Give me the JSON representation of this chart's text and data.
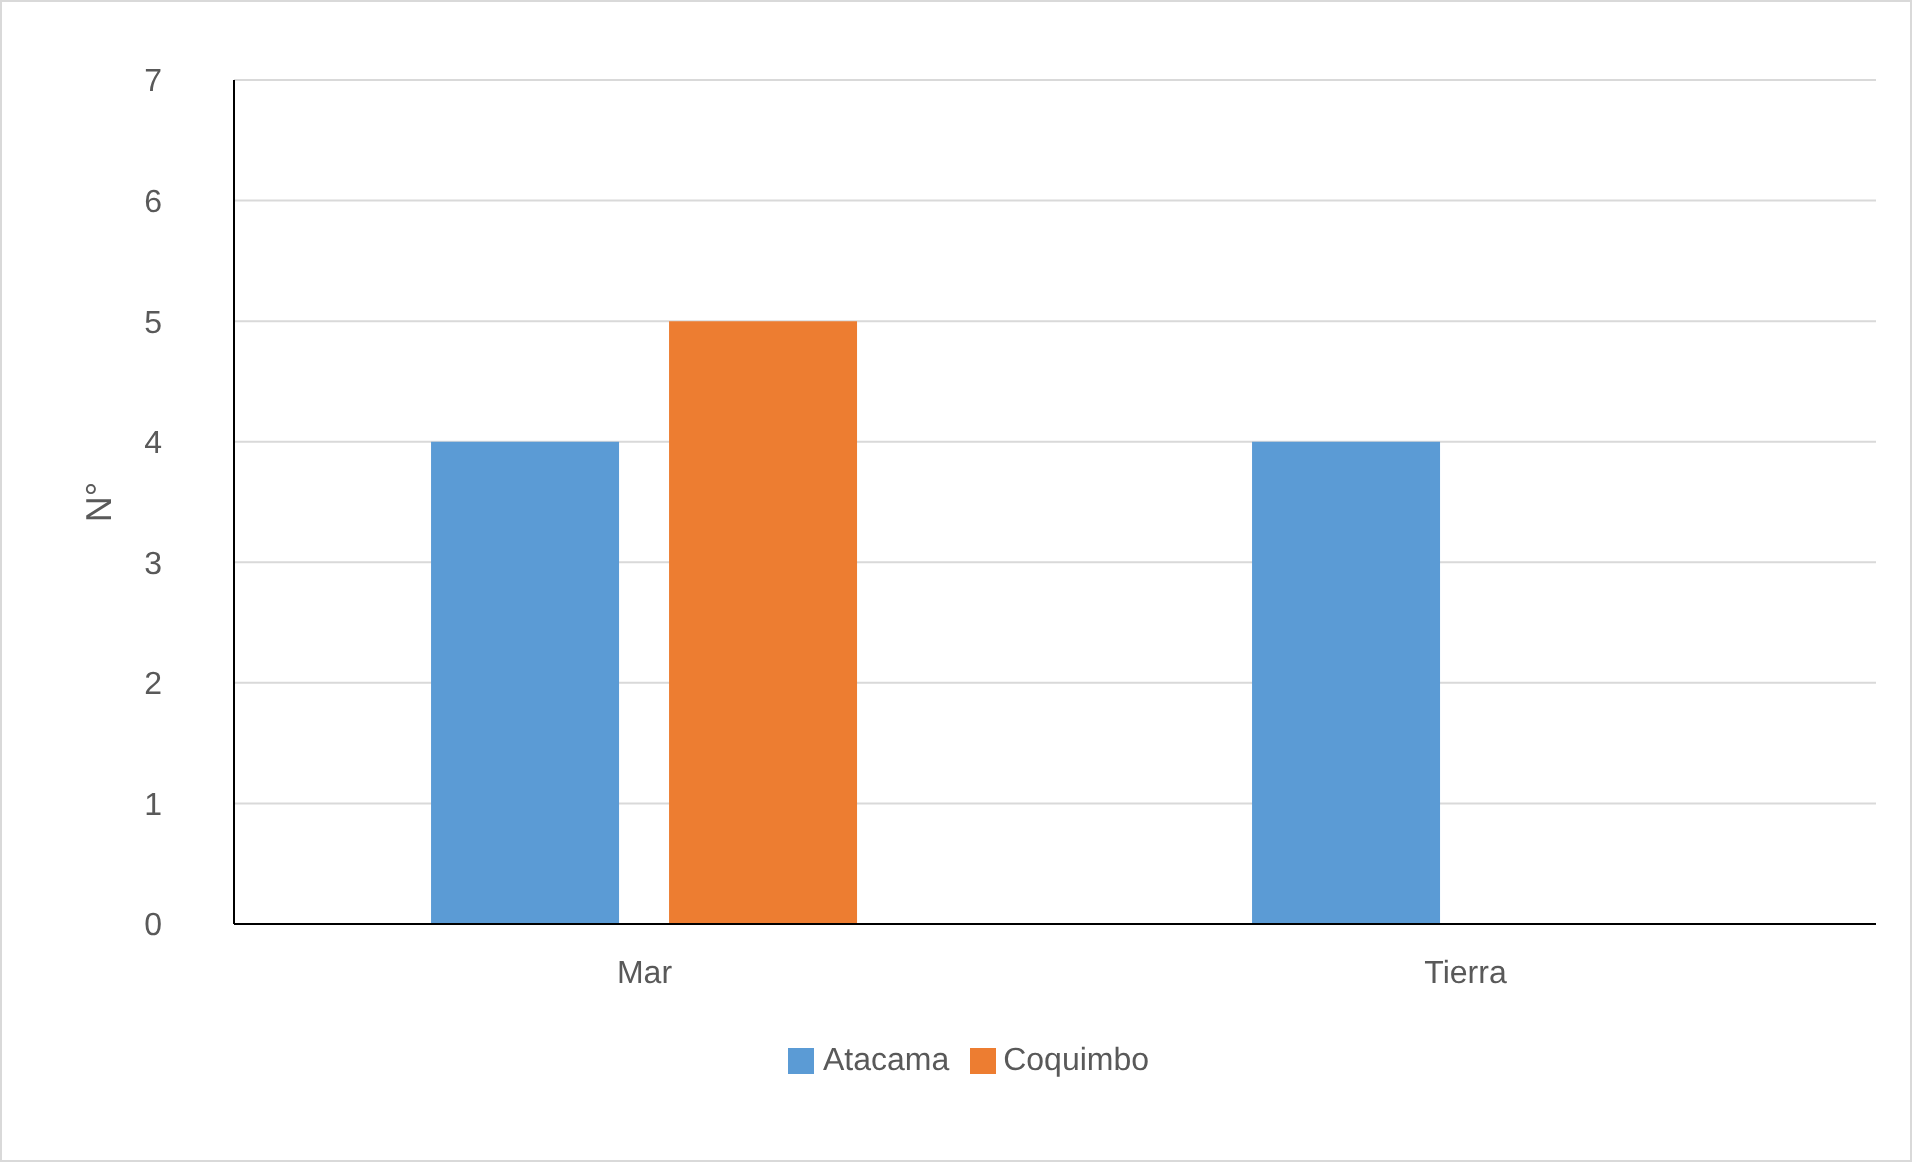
{
  "chart_data": {
    "type": "bar",
    "ylabel": "N°",
    "categories": [
      "Mar",
      "Tierra"
    ],
    "series": [
      {
        "name": "Atacama",
        "color": "#5b9bd5",
        "values": [
          4,
          4
        ]
      },
      {
        "name": "Coquimbo",
        "color": "#ed7d31",
        "values": [
          5,
          0
        ]
      }
    ],
    "ylim": [
      0,
      7
    ],
    "yticks": [
      0,
      1,
      2,
      3,
      4,
      5,
      6,
      7
    ],
    "grid": "y",
    "legend": "bottom"
  }
}
